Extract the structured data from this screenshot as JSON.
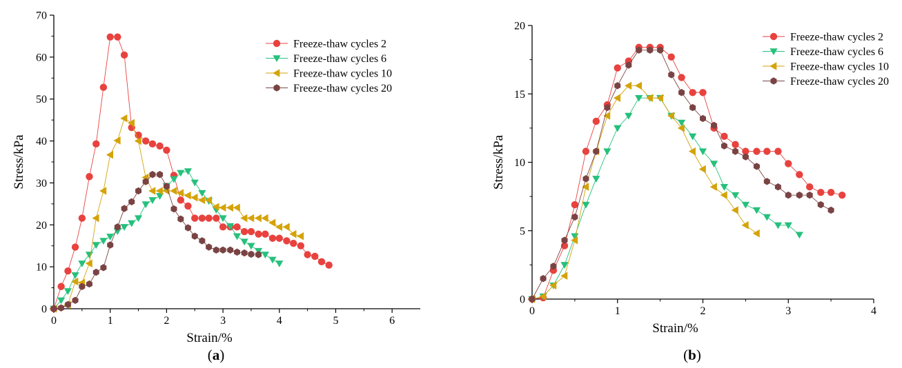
{
  "chart_data": [
    {
      "type": "line",
      "panel": "a",
      "caption": {
        "open": "(",
        "letter": "a",
        "close": ")"
      },
      "xlabel": "Strain/%",
      "ylabel": "Stress/kPa",
      "xlim": [
        0,
        6.5
      ],
      "ylim": [
        0,
        70
      ],
      "xticks": [
        0,
        1,
        2,
        3,
        4,
        5,
        6
      ],
      "yticks": [
        0,
        10,
        20,
        30,
        40,
        50,
        60,
        70
      ],
      "grid": false,
      "legend_position": "top-right",
      "series": [
        {
          "name": "Freeze-thaw cycles 2",
          "color": "#e8423f",
          "marker": "circle",
          "x": [
            0,
            0.13,
            0.25,
            0.38,
            0.5,
            0.63,
            0.75,
            0.88,
            1.0,
            1.13,
            1.25,
            1.38,
            1.5,
            1.63,
            1.75,
            1.88,
            2.0,
            2.13,
            2.25,
            2.38,
            2.5,
            2.63,
            2.75,
            2.88,
            3.0,
            3.13,
            3.25,
            3.38,
            3.5,
            3.63,
            3.75,
            3.88,
            4.0,
            4.13,
            4.25,
            4.38,
            4.5,
            4.63,
            4.75,
            4.88
          ],
          "y": [
            0,
            5.3,
            9.0,
            14.7,
            21.6,
            31.5,
            39.3,
            52.8,
            64.8,
            64.8,
            60.5,
            43.2,
            41.4,
            40.0,
            39.3,
            38.8,
            37.8,
            31.8,
            25.9,
            24.5,
            21.6,
            21.6,
            21.6,
            21.6,
            19.5,
            19.5,
            19.5,
            18.4,
            18.4,
            17.8,
            17.8,
            16.8,
            16.8,
            16.2,
            15.6,
            15.0,
            12.9,
            12.5,
            11.2,
            10.4
          ]
        },
        {
          "name": "Freeze-thaw cycles 6",
          "color": "#26c07c",
          "marker": "triangle-down",
          "x": [
            0,
            0.13,
            0.25,
            0.38,
            0.5,
            0.63,
            0.75,
            0.88,
            1.0,
            1.13,
            1.25,
            1.38,
            1.5,
            1.63,
            1.75,
            1.88,
            2.0,
            2.13,
            2.25,
            2.38,
            2.5,
            2.63,
            2.75,
            2.88,
            3.0,
            3.13,
            3.25,
            3.38,
            3.5,
            3.63,
            3.75,
            3.88,
            4.0
          ],
          "y": [
            0,
            2.0,
            4.2,
            8.0,
            10.8,
            12.9,
            15.2,
            16.2,
            17.2,
            18.5,
            19.5,
            20.4,
            21.6,
            24.9,
            25.9,
            26.9,
            29.3,
            30.9,
            32.4,
            32.8,
            30.1,
            27.6,
            25.7,
            23.6,
            21.6,
            19.7,
            17.3,
            16.0,
            15.0,
            13.8,
            12.9,
            11.7,
            10.8
          ]
        },
        {
          "name": "Freeze-thaw cycles 10",
          "color": "#d4a30a",
          "marker": "triangle-left",
          "x": [
            0,
            0.25,
            0.38,
            0.5,
            0.63,
            0.75,
            0.88,
            1.0,
            1.13,
            1.25,
            1.38,
            1.5,
            1.63,
            1.75,
            1.88,
            2.0,
            2.13,
            2.25,
            2.38,
            2.5,
            2.63,
            2.75,
            2.88,
            3.0,
            3.13,
            3.25,
            3.38,
            3.5,
            3.63,
            3.75,
            3.88,
            4.0,
            4.13,
            4.25,
            4.38
          ],
          "y": [
            0,
            1.0,
            6.5,
            6.2,
            10.8,
            21.6,
            28.1,
            36.7,
            40.1,
            45.4,
            44.3,
            40.0,
            31.3,
            28.1,
            28.1,
            28.1,
            28.1,
            27.6,
            27.0,
            26.5,
            25.9,
            25.9,
            24.3,
            24.1,
            24.1,
            24.1,
            21.6,
            21.6,
            21.6,
            21.6,
            20.5,
            19.5,
            19.5,
            17.8,
            17.3
          ]
        },
        {
          "name": "Freeze-thaw cycles 20",
          "color": "#7a4343",
          "marker": "hexagon",
          "x": [
            0,
            0.13,
            0.25,
            0.38,
            0.5,
            0.63,
            0.75,
            0.88,
            1.0,
            1.13,
            1.25,
            1.38,
            1.5,
            1.63,
            1.75,
            1.88,
            2.0,
            2.13,
            2.25,
            2.38,
            2.5,
            2.63,
            2.75,
            2.88,
            3.0,
            3.13,
            3.25,
            3.38,
            3.5,
            3.63
          ],
          "y": [
            0,
            0.2,
            1.0,
            2.0,
            5.3,
            5.9,
            8.7,
            9.8,
            15.2,
            19.5,
            23.9,
            25.5,
            28.1,
            30.3,
            32.0,
            32.0,
            29.2,
            23.8,
            21.4,
            19.3,
            17.3,
            16.2,
            14.7,
            14.0,
            14.0,
            14.0,
            13.5,
            13.3,
            13.0,
            12.9
          ]
        }
      ]
    },
    {
      "type": "line",
      "panel": "b",
      "caption": {
        "open": "(",
        "letter": "b",
        "close": ")"
      },
      "xlabel": "Strain/%",
      "ylabel": "Stress/kPa",
      "xlim": [
        0,
        4
      ],
      "ylim": [
        0,
        20
      ],
      "xticks": [
        0,
        1,
        2,
        3,
        4
      ],
      "yticks": [
        0,
        5,
        10,
        15,
        20
      ],
      "grid": false,
      "legend_position": "top-right",
      "series": [
        {
          "name": "Freeze-thaw cycles 2",
          "color": "#e8423f",
          "marker": "circle",
          "x": [
            0,
            0.13,
            0.25,
            0.38,
            0.5,
            0.63,
            0.75,
            0.88,
            1.0,
            1.13,
            1.25,
            1.38,
            1.5,
            1.63,
            1.75,
            1.88,
            2.0,
            2.13,
            2.25,
            2.38,
            2.5,
            2.63,
            2.75,
            2.88,
            3.0,
            3.13,
            3.25,
            3.38,
            3.5,
            3.63
          ],
          "y": [
            0,
            0.1,
            2.1,
            3.9,
            6.9,
            10.8,
            13.0,
            14.2,
            16.9,
            17.4,
            18.4,
            18.4,
            18.4,
            17.7,
            16.2,
            15.1,
            15.1,
            12.5,
            11.9,
            11.3,
            10.8,
            10.8,
            10.8,
            10.8,
            9.9,
            9.1,
            8.2,
            7.8,
            7.8,
            7.6
          ]
        },
        {
          "name": "Freeze-thaw cycles 6",
          "color": "#26c07c",
          "marker": "triangle-down",
          "x": [
            0,
            0.13,
            0.25,
            0.38,
            0.5,
            0.63,
            0.75,
            0.88,
            1.0,
            1.13,
            1.25,
            1.38,
            1.5,
            1.63,
            1.75,
            1.88,
            2.0,
            2.13,
            2.25,
            2.38,
            2.5,
            2.63,
            2.75,
            2.88,
            3.0,
            3.13
          ],
          "y": [
            0,
            0.2,
            1.0,
            2.5,
            4.6,
            6.9,
            8.8,
            10.8,
            12.5,
            13.4,
            14.7,
            14.7,
            14.7,
            13.4,
            12.9,
            11.9,
            10.8,
            9.9,
            8.2,
            7.6,
            6.9,
            6.5,
            6.0,
            5.4,
            5.4,
            4.7
          ]
        },
        {
          "name": "Freeze-thaw cycles 10",
          "color": "#d4a30a",
          "marker": "triangle-left",
          "x": [
            0,
            0.13,
            0.25,
            0.38,
            0.5,
            0.63,
            0.75,
            0.88,
            1.0,
            1.13,
            1.25,
            1.38,
            1.5,
            1.63,
            1.75,
            1.88,
            2.0,
            2.13,
            2.25,
            2.38,
            2.5,
            2.63
          ],
          "y": [
            0,
            0.2,
            1.0,
            1.7,
            4.3,
            8.2,
            10.8,
            13.4,
            14.7,
            15.6,
            15.6,
            14.7,
            14.7,
            13.4,
            12.5,
            10.8,
            9.5,
            8.2,
            7.6,
            6.5,
            5.4,
            4.8
          ]
        },
        {
          "name": "Freeze-thaw cycles 20",
          "color": "#7a4343",
          "marker": "hexagon",
          "x": [
            0,
            0.13,
            0.25,
            0.38,
            0.5,
            0.63,
            0.75,
            0.88,
            1.0,
            1.13,
            1.25,
            1.38,
            1.5,
            1.63,
            1.75,
            1.88,
            2.0,
            2.13,
            2.25,
            2.38,
            2.5,
            2.63,
            2.75,
            2.88,
            3.0,
            3.13,
            3.25,
            3.38,
            3.5
          ],
          "y": [
            0,
            1.5,
            2.4,
            4.3,
            6.0,
            8.8,
            10.8,
            14.0,
            15.6,
            17.1,
            18.2,
            18.2,
            18.2,
            16.4,
            15.1,
            14.0,
            13.2,
            12.7,
            11.2,
            10.8,
            10.4,
            9.7,
            8.6,
            8.2,
            7.6,
            7.6,
            7.6,
            6.9,
            6.5
          ]
        }
      ]
    }
  ]
}
